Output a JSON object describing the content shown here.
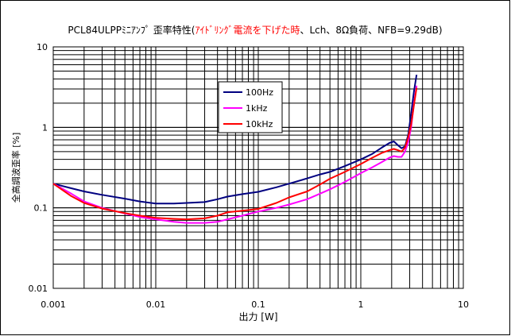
{
  "chart_data": {
    "type": "line",
    "title_parts": [
      {
        "text": "PCL84ULPPﾐﾆｱﾝﾌﾟ 歪率特性(",
        "color": "#000000"
      },
      {
        "text": "ｱｲﾄﾞﾘﾝｸﾞ電流を下げた時",
        "color": "#ff0000"
      },
      {
        "text": "、Lch、8Ω負荷、NFB=9.29dB)",
        "color": "#000000"
      }
    ],
    "xlabel": "出力 [W]",
    "ylabel": "全高調波歪率 [%]",
    "x_scale": "log",
    "y_scale": "log",
    "xlim": [
      0.001,
      10
    ],
    "ylim": [
      0.01,
      10
    ],
    "x_ticks": [
      {
        "value": 0.001,
        "label": "0.001"
      },
      {
        "value": 0.01,
        "label": "0.01"
      },
      {
        "value": 0.1,
        "label": "0.1"
      },
      {
        "value": 1,
        "label": "1"
      },
      {
        "value": 10,
        "label": "10"
      }
    ],
    "y_ticks": [
      {
        "value": 0.01,
        "label": "0.01"
      },
      {
        "value": 0.1,
        "label": "0.1"
      },
      {
        "value": 1,
        "label": "1"
      },
      {
        "value": 10,
        "label": "10"
      }
    ],
    "grid": true,
    "legend_position": "upper-center",
    "series": [
      {
        "name": "100Hz",
        "color": "#000080",
        "points": [
          [
            0.001,
            0.2
          ],
          [
            0.0015,
            0.175
          ],
          [
            0.002,
            0.16
          ],
          [
            0.003,
            0.145
          ],
          [
            0.005,
            0.13
          ],
          [
            0.007,
            0.12
          ],
          [
            0.01,
            0.113
          ],
          [
            0.015,
            0.113
          ],
          [
            0.02,
            0.115
          ],
          [
            0.03,
            0.118
          ],
          [
            0.04,
            0.128
          ],
          [
            0.05,
            0.138
          ],
          [
            0.07,
            0.148
          ],
          [
            0.1,
            0.158
          ],
          [
            0.15,
            0.18
          ],
          [
            0.2,
            0.2
          ],
          [
            0.3,
            0.232
          ],
          [
            0.4,
            0.26
          ],
          [
            0.5,
            0.28
          ],
          [
            0.7,
            0.33
          ],
          [
            1,
            0.4
          ],
          [
            1.3,
            0.47
          ],
          [
            1.6,
            0.56
          ],
          [
            1.9,
            0.64
          ],
          [
            2.1,
            0.67
          ],
          [
            2.3,
            0.6
          ],
          [
            2.5,
            0.55
          ],
          [
            2.7,
            0.58
          ],
          [
            2.9,
            0.8
          ],
          [
            3.1,
            1.5
          ],
          [
            3.3,
            2.8
          ],
          [
            3.5,
            4.5
          ]
        ]
      },
      {
        "name": "1kHz",
        "color": "#ff00ff",
        "points": [
          [
            0.001,
            0.2
          ],
          [
            0.0015,
            0.15
          ],
          [
            0.002,
            0.12
          ],
          [
            0.003,
            0.1
          ],
          [
            0.005,
            0.085
          ],
          [
            0.007,
            0.077
          ],
          [
            0.01,
            0.072
          ],
          [
            0.015,
            0.067
          ],
          [
            0.02,
            0.065
          ],
          [
            0.03,
            0.065
          ],
          [
            0.04,
            0.067
          ],
          [
            0.05,
            0.072
          ],
          [
            0.07,
            0.08
          ],
          [
            0.1,
            0.09
          ],
          [
            0.15,
            0.1
          ],
          [
            0.2,
            0.11
          ],
          [
            0.3,
            0.128
          ],
          [
            0.4,
            0.15
          ],
          [
            0.5,
            0.17
          ],
          [
            0.7,
            0.21
          ],
          [
            1,
            0.27
          ],
          [
            1.3,
            0.32
          ],
          [
            1.6,
            0.37
          ],
          [
            1.9,
            0.42
          ],
          [
            2.1,
            0.44
          ],
          [
            2.3,
            0.43
          ],
          [
            2.5,
            0.43
          ],
          [
            2.7,
            0.5
          ],
          [
            2.9,
            0.65
          ],
          [
            3.1,
            1.0
          ],
          [
            3.3,
            2.0
          ],
          [
            3.5,
            3.3
          ]
        ]
      },
      {
        "name": "10kHz",
        "color": "#ff0000",
        "points": [
          [
            0.001,
            0.2
          ],
          [
            0.0015,
            0.14
          ],
          [
            0.002,
            0.115
          ],
          [
            0.003,
            0.098
          ],
          [
            0.005,
            0.086
          ],
          [
            0.007,
            0.08
          ],
          [
            0.01,
            0.075
          ],
          [
            0.015,
            0.073
          ],
          [
            0.02,
            0.072
          ],
          [
            0.03,
            0.074
          ],
          [
            0.04,
            0.08
          ],
          [
            0.05,
            0.088
          ],
          [
            0.07,
            0.092
          ],
          [
            0.1,
            0.097
          ],
          [
            0.15,
            0.115
          ],
          [
            0.2,
            0.135
          ],
          [
            0.3,
            0.16
          ],
          [
            0.4,
            0.195
          ],
          [
            0.5,
            0.23
          ],
          [
            0.7,
            0.28
          ],
          [
            1,
            0.35
          ],
          [
            1.3,
            0.42
          ],
          [
            1.6,
            0.48
          ],
          [
            1.9,
            0.52
          ],
          [
            2.1,
            0.54
          ],
          [
            2.3,
            0.52
          ],
          [
            2.5,
            0.5
          ],
          [
            2.7,
            0.56
          ],
          [
            2.9,
            0.75
          ],
          [
            3.1,
            1.1
          ],
          [
            3.3,
            1.9
          ],
          [
            3.5,
            3.1
          ]
        ]
      }
    ]
  }
}
